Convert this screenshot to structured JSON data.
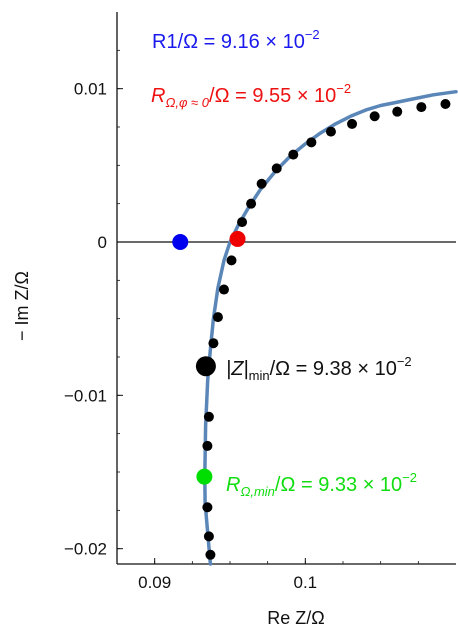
{
  "chart_data": {
    "type": "scatter",
    "xlabel": "Re Z/Ω",
    "ylabel": "− Im Z/Ω",
    "xlim": [
      0.0875,
      0.11
    ],
    "ylim": [
      -0.021,
      0.015
    ],
    "x_ticks": [
      {
        "value": 0.09,
        "label": "0.09"
      },
      {
        "value": 0.1,
        "label": "0.1"
      }
    ],
    "y_ticks": [
      {
        "value": 0.01,
        "label": "0.01"
      },
      {
        "value": 0,
        "label": "0"
      },
      {
        "value": -0.01,
        "label": "−0.01"
      },
      {
        "value": -0.02,
        "label": "−0.02"
      }
    ],
    "zero_line": true,
    "fit_curve": {
      "color": "#5b86b8",
      "points": [
        [
          0.0937,
          -0.021
        ],
        [
          0.09335,
          -0.017
        ],
        [
          0.09333,
          -0.0153
        ],
        [
          0.09338,
          -0.012
        ],
        [
          0.09352,
          -0.009
        ],
        [
          0.0937,
          -0.007
        ],
        [
          0.0939,
          -0.005
        ],
        [
          0.0942,
          -0.003
        ],
        [
          0.0946,
          -0.0012
        ],
        [
          0.095,
          0.0
        ],
        [
          0.09555,
          0.0011
        ],
        [
          0.0962,
          0.0022
        ],
        [
          0.097,
          0.0034
        ],
        [
          0.098,
          0.0046
        ],
        [
          0.099,
          0.0056
        ],
        [
          0.1,
          0.0064
        ],
        [
          0.101,
          0.0071
        ],
        [
          0.102,
          0.0077
        ],
        [
          0.103,
          0.0082
        ],
        [
          0.104,
          0.0086
        ],
        [
          0.105,
          0.0089
        ],
        [
          0.106,
          0.0091
        ],
        [
          0.107,
          0.0093
        ],
        [
          0.1085,
          0.0096
        ],
        [
          0.11,
          0.0098
        ]
      ]
    },
    "series": [
      {
        "color": "#000000",
        "points": [
          [
            0.1093,
            0.009
          ],
          [
            0.1077,
            0.0088
          ],
          [
            0.1061,
            0.0085
          ],
          [
            0.1046,
            0.0082
          ],
          [
            0.1031,
            0.0077
          ],
          [
            0.1017,
            0.0072
          ],
          [
            0.1004,
            0.0065
          ],
          [
            0.0992,
            0.0057
          ],
          [
            0.0981,
            0.0048
          ],
          [
            0.0971,
            0.0038
          ],
          [
            0.0964,
            0.0025
          ],
          [
            0.0958,
            0.0013
          ],
          [
            0.0951,
            -0.0012
          ],
          [
            0.0946,
            -0.0031
          ],
          [
            0.0942,
            -0.0049
          ],
          [
            0.0939,
            -0.0066
          ],
          [
            0.0936,
            -0.0114
          ],
          [
            0.0935,
            -0.0133
          ],
          [
            0.0935,
            -0.0173
          ],
          [
            0.0936,
            -0.0192
          ],
          [
            0.0937,
            -0.0204
          ]
        ]
      }
    ],
    "highlights": [
      {
        "x": 0.0917,
        "y": 0.0,
        "color": "#0000ee",
        "size": "medium"
      },
      {
        "x": 0.0955,
        "y": 0.0002,
        "color": "#ee0000",
        "size": "medium"
      },
      {
        "x": 0.0934,
        "y": -0.0081,
        "color": "#000000",
        "size": "large"
      },
      {
        "x": 0.0933,
        "y": -0.0153,
        "color": "#00dd00",
        "size": "medium"
      }
    ],
    "annotations": [
      {
        "id": "r1",
        "color": "#1a1aee",
        "text": "R1/Ω = 9.16 × 10",
        "exp": "−2"
      },
      {
        "id": "rphi",
        "color": "#ee1111",
        "sym": "R",
        "sub": "Ω,φ ≈ 0",
        "text": "/Ω = 9.55 × 10",
        "exp": "−2"
      },
      {
        "id": "zmin",
        "color": "#111111",
        "pre": "|Z|",
        "sub": "min",
        "text": "/Ω = 9.38 × 10",
        "exp": "−2"
      },
      {
        "id": "rmin",
        "color": "#11dd11",
        "sym": "R",
        "sub": "Ω,min",
        "text": "/Ω = 9.33 × 10",
        "exp": "−2"
      }
    ]
  }
}
